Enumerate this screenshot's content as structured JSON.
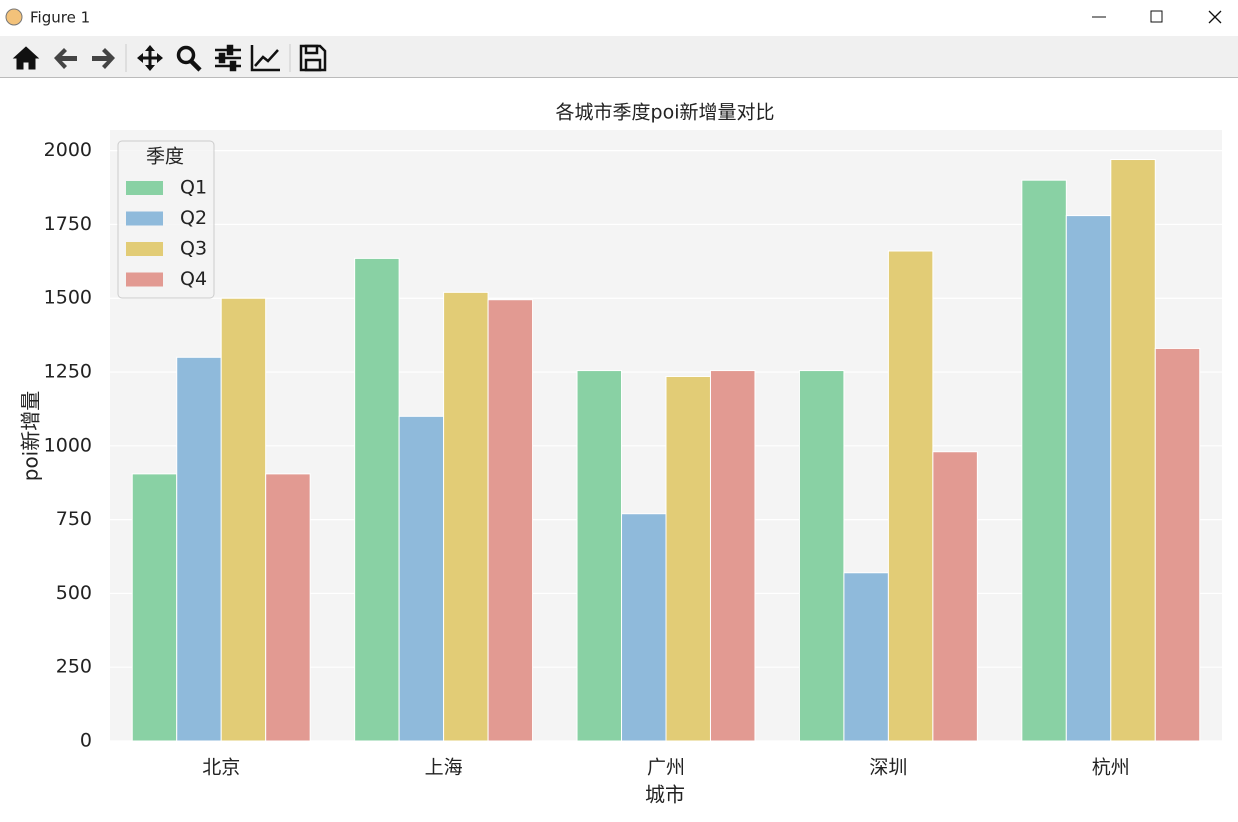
{
  "window": {
    "title": "Figure 1"
  },
  "chart_data": {
    "type": "bar",
    "title": "各城市季度poi新增量对比",
    "xlabel": "城市",
    "ylabel": "poi新增量",
    "categories": [
      "北京",
      "上海",
      "广州",
      "深圳",
      "杭州"
    ],
    "series": [
      {
        "name": "Q1",
        "color": "#89d1a4",
        "values": [
          905,
          1635,
          1255,
          1255,
          1900
        ]
      },
      {
        "name": "Q2",
        "color": "#8fbadb",
        "values": [
          1300,
          1100,
          770,
          570,
          1780
        ]
      },
      {
        "name": "Q3",
        "color": "#e2cc76",
        "values": [
          1500,
          1520,
          1235,
          1660,
          1970
        ]
      },
      {
        "name": "Q4",
        "color": "#e29a92",
        "values": [
          905,
          1495,
          1255,
          980,
          1330
        ]
      }
    ],
    "legend_title": "季度",
    "legend": "upper left",
    "ylim": [
      0,
      2070
    ],
    "yticks": [
      0,
      250,
      500,
      750,
      1000,
      1250,
      1500,
      1750,
      2000
    ],
    "grid": true
  }
}
